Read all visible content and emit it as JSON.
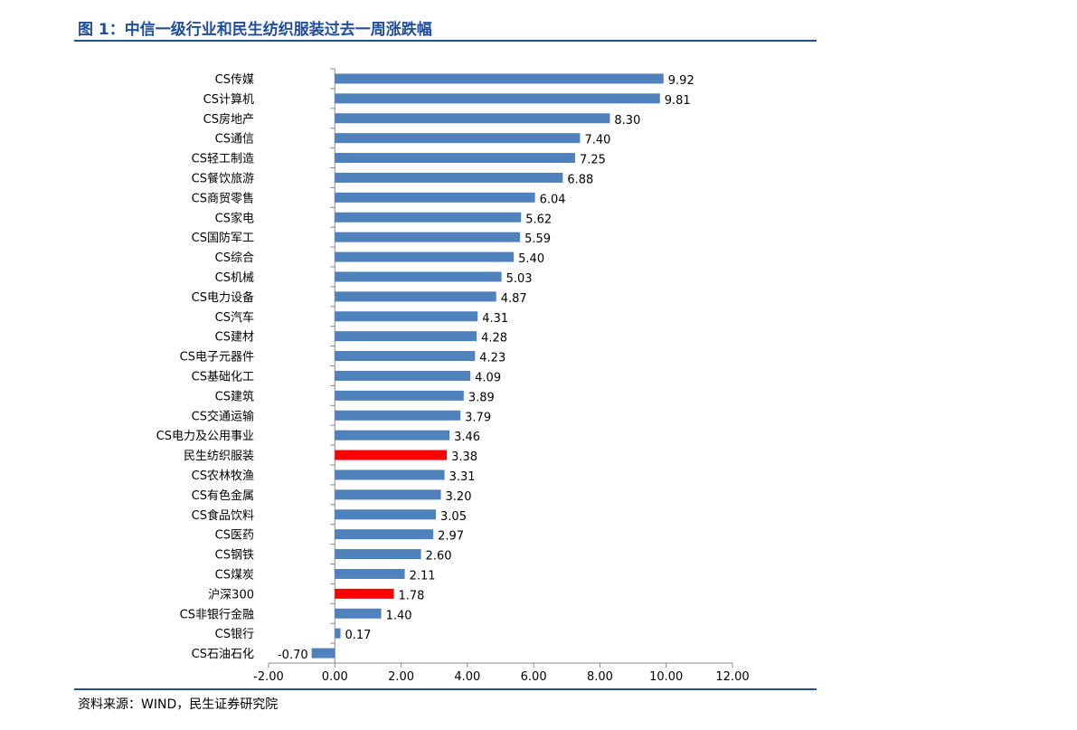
{
  "title": "图 1：中信一级行业和民生纺织服装过去一周涨跌幅",
  "source": "资料来源：WIND，民生证券研究院",
  "colors": {
    "default": "#4f81bd",
    "highlight": "#ff0000",
    "accent": "#1f4e9b"
  },
  "chart_data": {
    "type": "bar",
    "orientation": "horizontal",
    "title": "",
    "xlabel": "",
    "ylabel": "",
    "xlim": [
      -2,
      12
    ],
    "xticks": [
      "-2.00",
      "0.00",
      "2.00",
      "4.00",
      "6.00",
      "8.00",
      "10.00",
      "12.00"
    ],
    "grid": false,
    "legend": "none",
    "data_labels": true,
    "categories": [
      "CS传媒",
      "CS计算机",
      "CS房地产",
      "CS通信",
      "CS轻工制造",
      "CS餐饮旅游",
      "CS商贸零售",
      "CS家电",
      "CS国防军工",
      "CS综合",
      "CS机械",
      "CS电力设备",
      "CS汽车",
      "CS建材",
      "CS电子元器件",
      "CS基础化工",
      "CS建筑",
      "CS交通运输",
      "CS电力及公用事业",
      "民生纺织服装",
      "CS农林牧渔",
      "CS有色金属",
      "CS食品饮料",
      "CS医药",
      "CS钢铁",
      "CS煤炭",
      "沪深300",
      "CS非银行金融",
      "CS银行",
      "CS石油石化"
    ],
    "values": [
      9.92,
      9.81,
      8.3,
      7.4,
      7.25,
      6.88,
      6.04,
      5.62,
      5.59,
      5.4,
      5.03,
      4.87,
      4.31,
      4.28,
      4.23,
      4.09,
      3.89,
      3.79,
      3.46,
      3.38,
      3.31,
      3.2,
      3.05,
      2.97,
      2.6,
      2.11,
      1.78,
      1.4,
      0.17,
      -0.7
    ],
    "value_labels": [
      "9.92",
      "9.81",
      "8.30",
      "7.40",
      "7.25",
      "6.88",
      "6.04",
      "5.62",
      "5.59",
      "5.40",
      "5.03",
      "4.87",
      "4.31",
      "4.28",
      "4.23",
      "4.09",
      "3.89",
      "3.79",
      "3.46",
      "3.38",
      "3.31",
      "3.20",
      "3.05",
      "2.97",
      "2.60",
      "2.11",
      "1.78",
      "1.40",
      "0.17",
      "-0.70"
    ],
    "highlighted": [
      "民生纺织服装",
      "沪深300"
    ]
  }
}
